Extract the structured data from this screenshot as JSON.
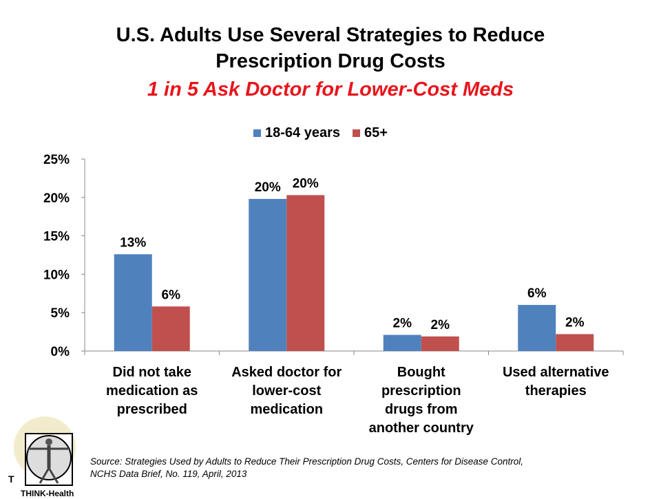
{
  "chart_data": {
    "type": "bar",
    "title": "U.S. Adults Use Several Strategies to Reduce Prescription Drug Costs",
    "title_lines": [
      "U.S. Adults Use Several Strategies to Reduce",
      "Prescription Drug Costs"
    ],
    "subtitle": "1 in 5 Ask Doctor for Lower-Cost Meds",
    "categories": [
      [
        "Did not take",
        "medication as",
        "prescribed"
      ],
      [
        "Asked doctor for",
        "lower-cost",
        "medication"
      ],
      [
        "Bought",
        "prescription",
        "drugs from",
        "another country"
      ],
      [
        "Used alternative",
        "therapies"
      ]
    ],
    "series": [
      {
        "name": "18-64 years",
        "color": "#4f81bd",
        "values": [
          12.6,
          19.8,
          2.1,
          6.0
        ],
        "labels": [
          "13%",
          "20%",
          "2%",
          "6%"
        ]
      },
      {
        "name": "65+",
        "color": "#c0504d",
        "values": [
          5.8,
          20.3,
          1.9,
          2.2
        ],
        "labels": [
          "6%",
          "20%",
          "2%",
          "2%"
        ]
      }
    ],
    "ylim": [
      0,
      25
    ],
    "yticks": [
      "0%",
      "5%",
      "10%",
      "15%",
      "20%",
      "25%"
    ],
    "xlabel": "",
    "ylabel": "",
    "grid": false,
    "legend": "top-center"
  },
  "source": [
    "Source: Strategies Used by Adults to Reduce Their Prescription Drug Costs, Centers for Disease Control,",
    "NCHS Data Brief, No. 119, April, 2013"
  ],
  "logo": {
    "letter": "T",
    "name": "THINK-Health"
  }
}
